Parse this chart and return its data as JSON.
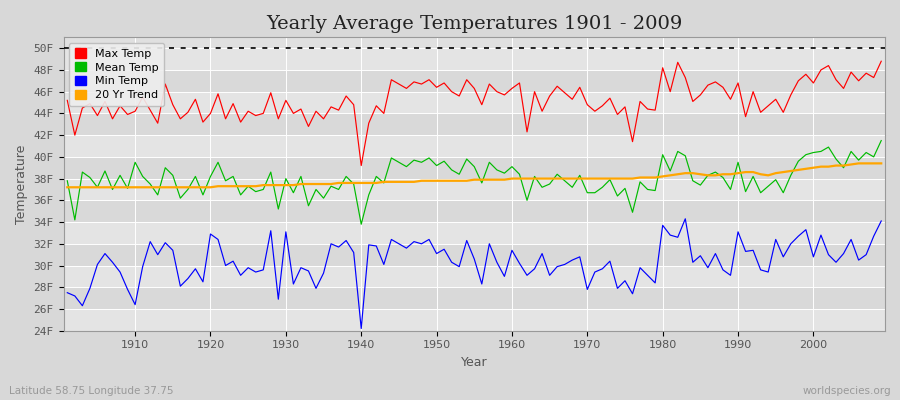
{
  "title": "Yearly Average Temperatures 1901 - 2009",
  "xlabel": "Year",
  "ylabel": "Temperature",
  "subtitle_left": "Latitude 58.75 Longitude 37.75",
  "subtitle_right": "worldspecies.org",
  "years": [
    1901,
    1902,
    1903,
    1904,
    1905,
    1906,
    1907,
    1908,
    1909,
    1910,
    1911,
    1912,
    1913,
    1914,
    1915,
    1916,
    1917,
    1918,
    1919,
    1920,
    1921,
    1922,
    1923,
    1924,
    1925,
    1926,
    1927,
    1928,
    1929,
    1930,
    1931,
    1932,
    1933,
    1934,
    1935,
    1936,
    1937,
    1938,
    1939,
    1940,
    1941,
    1942,
    1943,
    1944,
    1945,
    1946,
    1947,
    1948,
    1949,
    1950,
    1951,
    1952,
    1953,
    1954,
    1955,
    1956,
    1957,
    1958,
    1959,
    1960,
    1961,
    1962,
    1963,
    1964,
    1965,
    1966,
    1967,
    1968,
    1969,
    1970,
    1971,
    1972,
    1973,
    1974,
    1975,
    1976,
    1977,
    1978,
    1979,
    1980,
    1981,
    1982,
    1983,
    1984,
    1985,
    1986,
    1987,
    1988,
    1989,
    1990,
    1991,
    1992,
    1993,
    1994,
    1995,
    1996,
    1997,
    1998,
    1999,
    2000,
    2001,
    2002,
    2003,
    2004,
    2005,
    2006,
    2007,
    2008,
    2009
  ],
  "max_temp": [
    45.2,
    42.0,
    44.5,
    44.9,
    43.8,
    45.1,
    43.5,
    44.7,
    43.9,
    44.2,
    45.5,
    44.3,
    43.1,
    46.7,
    44.8,
    43.5,
    44.1,
    45.3,
    43.2,
    44.0,
    45.8,
    43.5,
    44.9,
    43.2,
    44.2,
    43.8,
    44.0,
    45.9,
    43.5,
    45.2,
    44.0,
    44.4,
    42.8,
    44.2,
    43.5,
    44.6,
    44.3,
    45.6,
    44.8,
    39.2,
    43.1,
    44.7,
    44.0,
    47.1,
    46.7,
    46.3,
    46.9,
    46.7,
    47.1,
    46.4,
    46.8,
    46.0,
    45.6,
    47.1,
    46.3,
    44.8,
    46.7,
    46.0,
    45.7,
    46.3,
    46.8,
    42.3,
    46.0,
    44.2,
    45.6,
    46.5,
    45.9,
    45.3,
    46.4,
    44.8,
    44.2,
    44.7,
    45.4,
    43.9,
    44.6,
    41.4,
    45.1,
    44.4,
    44.3,
    48.2,
    46.0,
    48.7,
    47.3,
    45.1,
    45.7,
    46.6,
    46.9,
    46.4,
    45.3,
    46.8,
    43.7,
    46.0,
    44.1,
    44.7,
    45.3,
    44.1,
    45.7,
    47.0,
    47.6,
    46.8,
    48.0,
    48.4,
    47.1,
    46.3,
    47.8,
    47.0,
    47.7,
    47.3,
    48.8
  ],
  "mean_temp": [
    37.8,
    34.2,
    38.6,
    38.1,
    37.2,
    38.7,
    37.0,
    38.3,
    37.1,
    39.5,
    38.2,
    37.5,
    36.5,
    39.0,
    38.3,
    36.2,
    37.0,
    38.2,
    36.5,
    38.2,
    39.5,
    37.8,
    38.2,
    36.5,
    37.3,
    36.8,
    37.0,
    38.6,
    35.2,
    38.0,
    36.7,
    38.2,
    35.5,
    37.0,
    36.2,
    37.3,
    37.0,
    38.2,
    37.5,
    33.8,
    36.5,
    38.2,
    37.6,
    39.9,
    39.5,
    39.1,
    39.7,
    39.5,
    39.9,
    39.2,
    39.6,
    38.8,
    38.4,
    39.8,
    39.1,
    37.6,
    39.5,
    38.8,
    38.5,
    39.1,
    38.4,
    36.0,
    38.2,
    37.2,
    37.5,
    38.4,
    37.8,
    37.2,
    38.3,
    36.7,
    36.7,
    37.2,
    37.9,
    36.4,
    37.1,
    34.9,
    37.7,
    37.0,
    36.9,
    40.2,
    38.7,
    40.5,
    40.1,
    37.8,
    37.4,
    38.3,
    38.6,
    38.1,
    37.0,
    39.5,
    36.8,
    38.2,
    36.7,
    37.3,
    37.9,
    36.7,
    38.3,
    39.6,
    40.2,
    40.4,
    40.5,
    40.9,
    39.8,
    39.0,
    40.5,
    39.7,
    40.4,
    40.0,
    41.5
  ],
  "min_temp": [
    27.5,
    27.2,
    26.3,
    27.9,
    30.1,
    31.1,
    30.3,
    29.4,
    27.8,
    26.4,
    29.9,
    32.2,
    31.0,
    32.1,
    31.4,
    28.1,
    28.8,
    29.7,
    28.5,
    32.9,
    32.4,
    30.0,
    30.4,
    29.1,
    29.8,
    29.4,
    29.6,
    33.2,
    26.9,
    33.1,
    28.3,
    29.8,
    29.5,
    27.9,
    29.3,
    32.0,
    31.7,
    32.3,
    31.2,
    24.2,
    31.9,
    31.8,
    30.1,
    32.4,
    32.0,
    31.6,
    32.2,
    32.0,
    32.4,
    31.1,
    31.5,
    30.3,
    29.9,
    32.3,
    30.6,
    28.3,
    32.0,
    30.3,
    29.0,
    31.4,
    30.2,
    29.1,
    29.7,
    31.1,
    29.1,
    29.9,
    30.1,
    30.5,
    30.8,
    27.8,
    29.4,
    29.7,
    30.4,
    27.9,
    28.6,
    27.4,
    29.8,
    29.1,
    28.4,
    33.7,
    32.8,
    32.6,
    34.3,
    30.3,
    30.9,
    29.8,
    31.1,
    29.6,
    29.1,
    33.1,
    31.3,
    31.4,
    29.6,
    29.4,
    32.4,
    30.8,
    32.0,
    32.7,
    33.3,
    30.8,
    32.8,
    31.0,
    30.3,
    31.1,
    32.4,
    30.5,
    31.0,
    32.7,
    34.1
  ],
  "trend_20yr": [
    37.2,
    37.2,
    37.2,
    37.2,
    37.2,
    37.2,
    37.2,
    37.2,
    37.2,
    37.2,
    37.2,
    37.2,
    37.2,
    37.2,
    37.2,
    37.2,
    37.2,
    37.2,
    37.2,
    37.2,
    37.3,
    37.3,
    37.3,
    37.3,
    37.3,
    37.3,
    37.4,
    37.4,
    37.4,
    37.4,
    37.4,
    37.5,
    37.5,
    37.5,
    37.5,
    37.5,
    37.6,
    37.6,
    37.6,
    37.6,
    37.6,
    37.6,
    37.7,
    37.7,
    37.7,
    37.7,
    37.7,
    37.8,
    37.8,
    37.8,
    37.8,
    37.8,
    37.8,
    37.8,
    37.9,
    37.9,
    37.9,
    37.9,
    37.9,
    38.0,
    38.0,
    38.0,
    38.0,
    38.0,
    38.0,
    38.0,
    38.0,
    38.0,
    38.0,
    38.0,
    38.0,
    38.0,
    38.0,
    38.0,
    38.0,
    38.0,
    38.1,
    38.1,
    38.1,
    38.2,
    38.3,
    38.4,
    38.5,
    38.5,
    38.4,
    38.3,
    38.3,
    38.4,
    38.4,
    38.5,
    38.6,
    38.6,
    38.4,
    38.3,
    38.5,
    38.6,
    38.7,
    38.8,
    38.9,
    39.0,
    39.1,
    39.1,
    39.2,
    39.2,
    39.3,
    39.4,
    39.4,
    39.4,
    39.4
  ],
  "max_color": "#ff0000",
  "mean_color": "#00bb00",
  "min_color": "#0000ff",
  "trend_color": "#ffa500",
  "fig_bg_color": "#d8d8d8",
  "plot_bg_color": "#e0e0e0",
  "grid_color": "#ffffff",
  "ylim_min": 24,
  "ylim_max": 51,
  "yticks": [
    24,
    26,
    28,
    30,
    32,
    34,
    36,
    38,
    40,
    42,
    44,
    46,
    48,
    50
  ],
  "ytick_labels": [
    "24F",
    "26F",
    "28F",
    "30F",
    "32F",
    "34F",
    "36F",
    "38F",
    "40F",
    "42F",
    "44F",
    "46F",
    "48F",
    "50F"
  ],
  "xticks": [
    1910,
    1920,
    1930,
    1940,
    1950,
    1960,
    1970,
    1980,
    1990,
    2000
  ],
  "dotted_line_y": 50,
  "legend_labels": [
    "Max Temp",
    "Mean Temp",
    "Min Temp",
    "20 Yr Trend"
  ],
  "title_fontsize": 14,
  "axis_label_fontsize": 9,
  "tick_fontsize": 8,
  "legend_fontsize": 8
}
